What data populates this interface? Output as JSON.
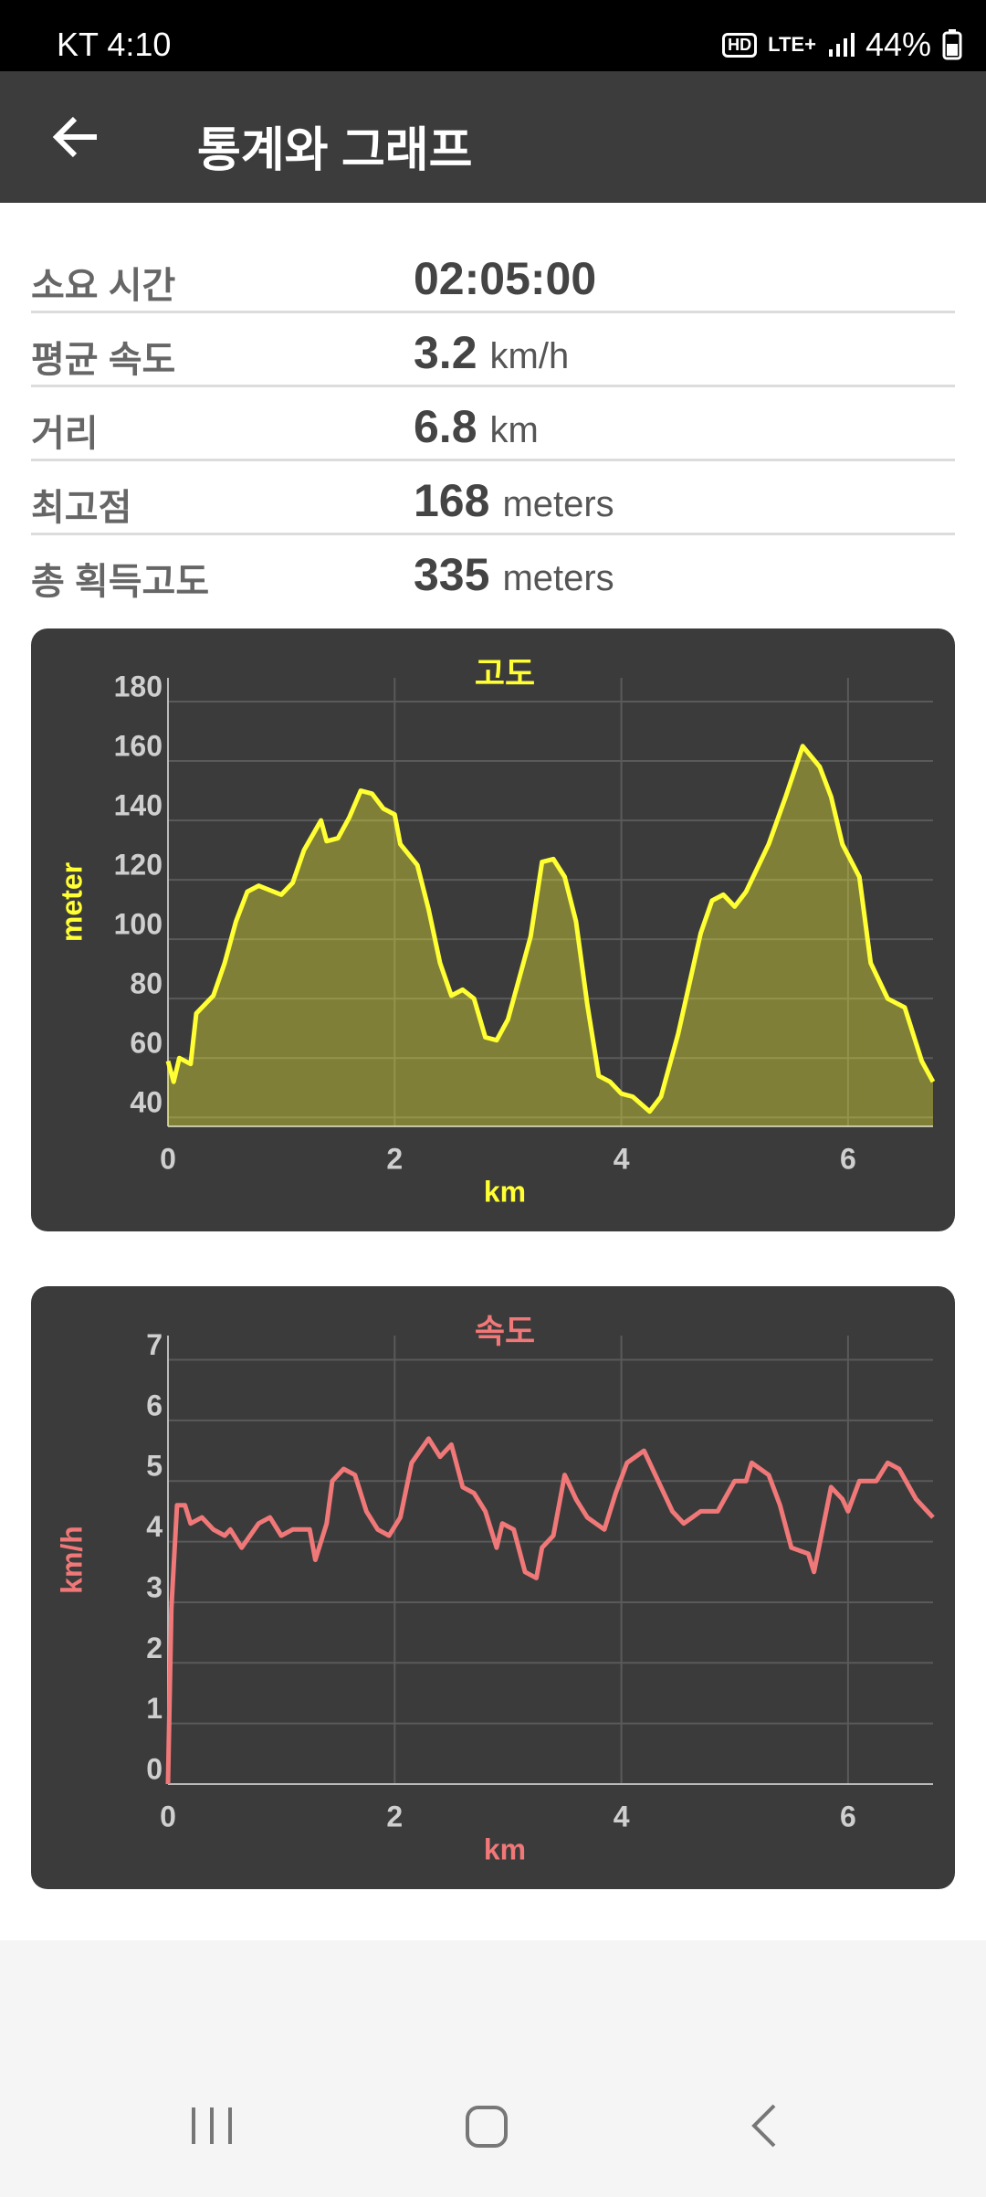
{
  "status": {
    "carrier_time": "KT 4:10",
    "hd": "HD",
    "network": "LTE+",
    "battery": "44%"
  },
  "header": {
    "title": "통계와 그래프"
  },
  "stats": [
    {
      "label": "소요 시간",
      "value": "02:05:00"
    },
    {
      "label": "평균 속도",
      "value": "3.2",
      "unit": "km/h"
    },
    {
      "label": "거리",
      "value": "6.8",
      "unit": "km"
    },
    {
      "label": "최고점",
      "value": "168",
      "unit": "meters"
    },
    {
      "label": "총 획득고도",
      "value": "335",
      "unit": "meters"
    }
  ],
  "chart_data": [
    {
      "type": "line",
      "title": "고도",
      "x_label": "km",
      "y_label": "meter",
      "color": "#ffff33",
      "area": true,
      "grid": true,
      "x": [
        0,
        0.05,
        0.1,
        0.2,
        0.25,
        0.4,
        0.5,
        0.6,
        0.7,
        0.8,
        1.0,
        1.1,
        1.2,
        1.35,
        1.4,
        1.5,
        1.6,
        1.7,
        1.8,
        1.9,
        2.0,
        2.05,
        2.2,
        2.3,
        2.4,
        2.5,
        2.6,
        2.7,
        2.8,
        2.9,
        3.0,
        3.1,
        3.2,
        3.3,
        3.4,
        3.5,
        3.6,
        3.7,
        3.8,
        3.9,
        4.0,
        4.1,
        4.25,
        4.35,
        4.5,
        4.7,
        4.8,
        4.9,
        5.0,
        5.1,
        5.3,
        5.45,
        5.6,
        5.75,
        5.85,
        5.95,
        6.1,
        6.2,
        6.35,
        6.5,
        6.65,
        6.75
      ],
      "values": [
        59,
        52,
        60,
        58,
        75,
        81,
        92,
        106,
        116,
        118,
        115,
        119,
        130,
        140,
        133,
        134,
        141,
        150,
        149,
        144,
        142,
        132,
        125,
        110,
        92,
        81,
        83,
        80,
        67,
        66,
        73,
        87,
        101,
        126,
        127,
        121,
        106,
        78,
        54,
        52,
        48,
        47,
        42,
        47,
        68,
        102,
        113,
        115,
        111,
        116,
        132,
        148,
        165,
        158,
        148,
        132,
        121,
        92,
        80,
        77,
        59,
        52
      ],
      "xlim": [
        0,
        6.75
      ],
      "ylim": [
        37,
        188
      ],
      "xticks": [
        0,
        2,
        4,
        6
      ],
      "yticks": [
        40,
        60,
        80,
        100,
        120,
        140,
        160,
        180
      ]
    },
    {
      "type": "line",
      "title": "속도",
      "x_label": "km",
      "y_label": "km/h",
      "color": "#f07878",
      "area": false,
      "grid": true,
      "x": [
        0,
        0.03,
        0.08,
        0.15,
        0.2,
        0.3,
        0.4,
        0.5,
        0.55,
        0.65,
        0.8,
        0.9,
        1.0,
        1.1,
        1.25,
        1.3,
        1.4,
        1.45,
        1.55,
        1.65,
        1.75,
        1.85,
        1.95,
        2.05,
        2.15,
        2.3,
        2.4,
        2.5,
        2.6,
        2.7,
        2.8,
        2.9,
        2.95,
        3.05,
        3.15,
        3.25,
        3.3,
        3.4,
        3.5,
        3.6,
        3.7,
        3.85,
        3.95,
        4.05,
        4.2,
        4.3,
        4.45,
        4.55,
        4.7,
        4.85,
        5.0,
        5.1,
        5.15,
        5.3,
        5.4,
        5.5,
        5.65,
        5.7,
        5.85,
        5.95,
        6.0,
        6.1,
        6.25,
        6.35,
        6.45,
        6.6,
        6.75
      ],
      "values": [
        0,
        2.9,
        4.6,
        4.6,
        4.3,
        4.4,
        4.2,
        4.1,
        4.2,
        3.9,
        4.3,
        4.4,
        4.1,
        4.2,
        4.2,
        3.7,
        4.3,
        5.0,
        5.2,
        5.1,
        4.5,
        4.2,
        4.1,
        4.4,
        5.3,
        5.7,
        5.4,
        5.6,
        4.9,
        4.8,
        4.5,
        3.9,
        4.3,
        4.2,
        3.5,
        3.4,
        3.9,
        4.1,
        5.1,
        4.7,
        4.4,
        4.2,
        4.8,
        5.3,
        5.5,
        5.1,
        4.5,
        4.3,
        4.5,
        4.5,
        5.0,
        5.0,
        5.3,
        5.1,
        4.6,
        3.9,
        3.8,
        3.5,
        4.9,
        4.7,
        4.5,
        5.0,
        5.0,
        5.3,
        5.2,
        4.7,
        4.4
      ],
      "xlim": [
        0,
        6.75
      ],
      "ylim": [
        0,
        7.4
      ],
      "xticks": [
        0,
        2,
        4,
        6
      ],
      "yticks": [
        0,
        1,
        2,
        3,
        4,
        5,
        6,
        7
      ]
    }
  ]
}
